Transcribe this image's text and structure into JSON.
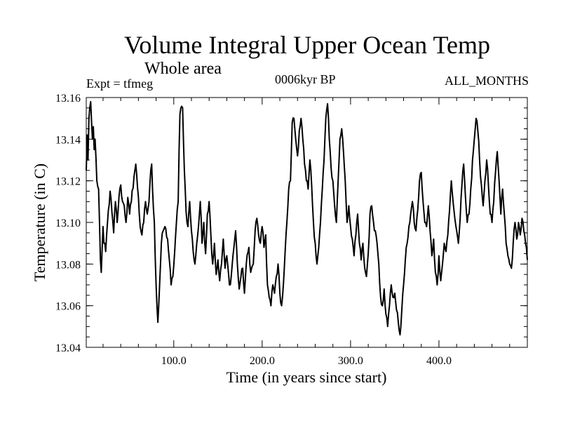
{
  "chart_data": {
    "type": "line",
    "title": "Volume Integral Upper Ocean Temp",
    "subtitle": "Whole area",
    "experiment_label": "Expt = tfmeg",
    "period_label": "0006kyr BP",
    "season_label": "ALL_MONTHS",
    "xlabel": "Time (in years since start)",
    "ylabel": "Temperature (in C)",
    "xlim": [
      1,
      500
    ],
    "ylim": [
      13.04,
      13.16
    ],
    "x_ticks": [
      100,
      200,
      300,
      400
    ],
    "x_tick_labels": [
      "100.0",
      "200.0",
      "300.0",
      "400.0"
    ],
    "y_ticks": [
      13.04,
      13.06,
      13.08,
      13.1,
      13.12,
      13.14,
      13.16
    ],
    "y_tick_labels": [
      "13.04",
      "13.06",
      "13.08",
      "13.10",
      "13.12",
      "13.14",
      "13.16"
    ],
    "series": [
      {
        "name": "Temperature",
        "color": "#000000",
        "keypoints": [
          [
            1,
            13.125
          ],
          [
            2,
            13.142
          ],
          [
            3,
            13.13
          ],
          [
            4,
            13.15
          ],
          [
            5,
            13.155
          ],
          [
            6,
            13.158
          ],
          [
            7,
            13.148
          ],
          [
            8,
            13.14
          ],
          [
            9,
            13.146
          ],
          [
            10,
            13.135
          ],
          [
            11,
            13.14
          ],
          [
            13,
            13.12
          ],
          [
            15,
            13.116
          ],
          [
            16,
            13.1
          ],
          [
            17,
            13.082
          ],
          [
            18,
            13.076
          ],
          [
            20,
            13.098
          ],
          [
            21,
            13.09
          ],
          [
            23,
            13.086
          ],
          [
            25,
            13.1
          ],
          [
            28,
            13.115
          ],
          [
            30,
            13.105
          ],
          [
            32,
            13.095
          ],
          [
            34,
            13.11
          ],
          [
            36,
            13.1
          ],
          [
            38,
            13.112
          ],
          [
            40,
            13.118
          ],
          [
            42,
            13.11
          ],
          [
            44,
            13.108
          ],
          [
            46,
            13.1
          ],
          [
            48,
            13.112
          ],
          [
            50,
            13.104
          ],
          [
            52,
            13.11
          ],
          [
            55,
            13.122
          ],
          [
            57,
            13.128
          ],
          [
            60,
            13.112
          ],
          [
            62,
            13.098
          ],
          [
            64,
            13.094
          ],
          [
            66,
            13.1
          ],
          [
            68,
            13.11
          ],
          [
            70,
            13.104
          ],
          [
            72,
            13.11
          ],
          [
            74,
            13.125
          ],
          [
            75,
            13.128
          ],
          [
            76,
            13.116
          ],
          [
            78,
            13.1
          ],
          [
            80,
            13.07
          ],
          [
            82,
            13.052
          ],
          [
            84,
            13.07
          ],
          [
            86,
            13.09
          ],
          [
            88,
            13.096
          ],
          [
            90,
            13.098
          ],
          [
            93,
            13.092
          ],
          [
            95,
            13.082
          ],
          [
            97,
            13.07
          ],
          [
            99,
            13.074
          ],
          [
            101,
            13.086
          ],
          [
            103,
            13.1
          ],
          [
            105,
            13.11
          ],
          [
            106,
            13.135
          ],
          [
            107,
            13.152
          ],
          [
            108,
            13.155
          ],
          [
            110,
            13.155
          ],
          [
            112,
            13.125
          ],
          [
            114,
            13.105
          ],
          [
            116,
            13.098
          ],
          [
            118,
            13.11
          ],
          [
            120,
            13.096
          ],
          [
            122,
            13.086
          ],
          [
            124,
            13.08
          ],
          [
            126,
            13.09
          ],
          [
            128,
            13.098
          ],
          [
            130,
            13.11
          ],
          [
            132,
            13.09
          ],
          [
            134,
            13.1
          ],
          [
            136,
            13.085
          ],
          [
            138,
            13.104
          ],
          [
            140,
            13.11
          ],
          [
            142,
            13.094
          ],
          [
            144,
            13.08
          ],
          [
            146,
            13.09
          ],
          [
            148,
            13.075
          ],
          [
            150,
            13.082
          ],
          [
            152,
            13.072
          ],
          [
            154,
            13.08
          ],
          [
            156,
            13.092
          ],
          [
            158,
            13.078
          ],
          [
            160,
            13.084
          ],
          [
            163,
            13.07
          ],
          [
            165,
            13.074
          ],
          [
            167,
            13.084
          ],
          [
            170,
            13.096
          ],
          [
            172,
            13.08
          ],
          [
            174,
            13.068
          ],
          [
            176,
            13.074
          ],
          [
            178,
            13.078
          ],
          [
            180,
            13.066
          ],
          [
            182,
            13.08
          ],
          [
            185,
            13.088
          ],
          [
            187,
            13.076
          ],
          [
            190,
            13.08
          ],
          [
            192,
            13.096
          ],
          [
            194,
            13.102
          ],
          [
            196,
            13.094
          ],
          [
            198,
            13.09
          ],
          [
            200,
            13.098
          ],
          [
            202,
            13.088
          ],
          [
            204,
            13.094
          ],
          [
            206,
            13.07
          ],
          [
            208,
            13.064
          ],
          [
            210,
            13.06
          ],
          [
            212,
            13.07
          ],
          [
            214,
            13.066
          ],
          [
            216,
            13.074
          ],
          [
            218,
            13.08
          ],
          [
            220,
            13.066
          ],
          [
            222,
            13.06
          ],
          [
            224,
            13.07
          ],
          [
            226,
            13.086
          ],
          [
            228,
            13.1
          ],
          [
            230,
            13.116
          ],
          [
            232,
            13.12
          ],
          [
            234,
            13.148
          ],
          [
            236,
            13.15
          ],
          [
            238,
            13.14
          ],
          [
            240,
            13.132
          ],
          [
            242,
            13.144
          ],
          [
            244,
            13.15
          ],
          [
            246,
            13.14
          ],
          [
            248,
            13.128
          ],
          [
            250,
            13.12
          ],
          [
            252,
            13.116
          ],
          [
            254,
            13.13
          ],
          [
            256,
            13.118
          ],
          [
            258,
            13.1
          ],
          [
            260,
            13.09
          ],
          [
            262,
            13.08
          ],
          [
            264,
            13.088
          ],
          [
            266,
            13.1
          ],
          [
            268,
            13.116
          ],
          [
            270,
            13.13
          ],
          [
            272,
            13.15
          ],
          [
            274,
            13.157
          ],
          [
            276,
            13.14
          ],
          [
            278,
            13.126
          ],
          [
            280,
            13.12
          ],
          [
            282,
            13.108
          ],
          [
            284,
            13.1
          ],
          [
            286,
            13.12
          ],
          [
            288,
            13.14
          ],
          [
            290,
            13.145
          ],
          [
            292,
            13.134
          ],
          [
            294,
            13.12
          ],
          [
            296,
            13.1
          ],
          [
            298,
            13.108
          ],
          [
            300,
            13.098
          ],
          [
            302,
            13.092
          ],
          [
            304,
            13.084
          ],
          [
            306,
            13.094
          ],
          [
            308,
            13.104
          ],
          [
            310,
            13.09
          ],
          [
            312,
            13.082
          ],
          [
            314,
            13.09
          ],
          [
            316,
            13.078
          ],
          [
            318,
            13.074
          ],
          [
            320,
            13.085
          ],
          [
            322,
            13.104
          ],
          [
            324,
            13.108
          ],
          [
            326,
            13.1
          ],
          [
            328,
            13.096
          ],
          [
            330,
            13.09
          ],
          [
            332,
            13.08
          ],
          [
            334,
            13.064
          ],
          [
            336,
            13.06
          ],
          [
            338,
            13.068
          ],
          [
            340,
            13.056
          ],
          [
            342,
            13.05
          ],
          [
            344,
            13.06
          ],
          [
            346,
            13.07
          ],
          [
            348,
            13.064
          ],
          [
            350,
            13.066
          ],
          [
            352,
            13.058
          ],
          [
            354,
            13.052
          ],
          [
            356,
            13.046
          ],
          [
            358,
            13.058
          ],
          [
            360,
            13.07
          ],
          [
            362,
            13.082
          ],
          [
            364,
            13.09
          ],
          [
            366,
            13.098
          ],
          [
            368,
            13.104
          ],
          [
            370,
            13.11
          ],
          [
            372,
            13.1
          ],
          [
            374,
            13.096
          ],
          [
            376,
            13.106
          ],
          [
            378,
            13.12
          ],
          [
            380,
            13.124
          ],
          [
            382,
            13.11
          ],
          [
            384,
            13.1
          ],
          [
            386,
            13.098
          ],
          [
            388,
            13.108
          ],
          [
            390,
            13.096
          ],
          [
            392,
            13.084
          ],
          [
            394,
            13.092
          ],
          [
            396,
            13.076
          ],
          [
            398,
            13.07
          ],
          [
            400,
            13.084
          ],
          [
            402,
            13.072
          ],
          [
            404,
            13.08
          ],
          [
            406,
            13.09
          ],
          [
            408,
            13.086
          ],
          [
            410,
            13.094
          ],
          [
            412,
            13.106
          ],
          [
            414,
            13.12
          ],
          [
            416,
            13.11
          ],
          [
            418,
            13.102
          ],
          [
            420,
            13.096
          ],
          [
            422,
            13.09
          ],
          [
            424,
            13.102
          ],
          [
            426,
            13.118
          ],
          [
            428,
            13.128
          ],
          [
            430,
            13.112
          ],
          [
            432,
            13.1
          ],
          [
            434,
            13.104
          ],
          [
            436,
            13.116
          ],
          [
            438,
            13.13
          ],
          [
            440,
            13.14
          ],
          [
            442,
            13.15
          ],
          [
            444,
            13.144
          ],
          [
            446,
            13.13
          ],
          [
            448,
            13.118
          ],
          [
            450,
            13.108
          ],
          [
            452,
            13.12
          ],
          [
            454,
            13.13
          ],
          [
            456,
            13.118
          ],
          [
            458,
            13.104
          ],
          [
            460,
            13.1
          ],
          [
            462,
            13.11
          ],
          [
            464,
            13.124
          ],
          [
            466,
            13.134
          ],
          [
            468,
            13.12
          ],
          [
            470,
            13.104
          ],
          [
            472,
            13.116
          ],
          [
            474,
            13.104
          ],
          [
            476,
            13.09
          ],
          [
            478,
            13.084
          ],
          [
            480,
            13.08
          ],
          [
            482,
            13.078
          ],
          [
            484,
            13.09
          ],
          [
            486,
            13.1
          ],
          [
            488,
            13.092
          ],
          [
            490,
            13.1
          ],
          [
            492,
            13.094
          ],
          [
            494,
            13.102
          ],
          [
            496,
            13.096
          ],
          [
            498,
            13.09
          ],
          [
            500,
            13.082
          ]
        ]
      }
    ]
  }
}
